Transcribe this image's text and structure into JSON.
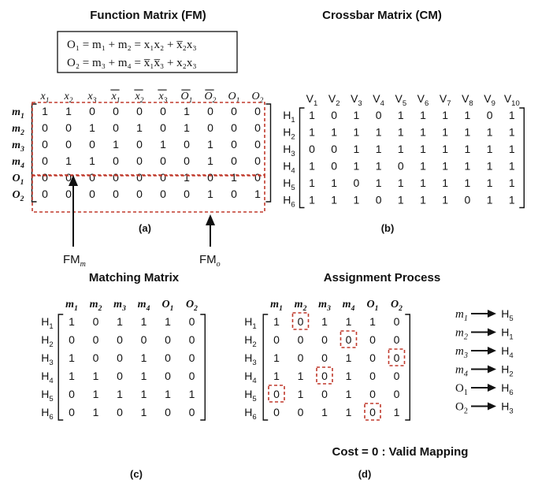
{
  "titles": {
    "fm": "Function Matrix (FM)",
    "cm": "Crossbar Matrix (CM)",
    "mm": "Matching Matrix",
    "ap": "Assignment Process"
  },
  "captions": {
    "a": "(a)",
    "b": "(b)",
    "c": "(c)",
    "d": "(d)"
  },
  "equations": {
    "eq1": "O₁ = m₁ + m₂ = x₁x₂ + x̅₂x₃",
    "eq2": "O₂ = m₃ + m₄ = x̅₁x̅₃ + x₂x₃"
  },
  "fm": {
    "cols": [
      "x1",
      "x2",
      "x3",
      "x1",
      "x2",
      "x3",
      "O1",
      "O2",
      "O1",
      "O2"
    ],
    "col_overlined": [
      false,
      false,
      false,
      true,
      true,
      true,
      true,
      true,
      false,
      false
    ],
    "rows": [
      "m1",
      "m2",
      "m3",
      "m4",
      "O1",
      "O2"
    ],
    "cells": [
      [
        1,
        1,
        0,
        0,
        0,
        0,
        1,
        0,
        0,
        0
      ],
      [
        0,
        0,
        1,
        0,
        1,
        0,
        1,
        0,
        0,
        0
      ],
      [
        0,
        0,
        0,
        1,
        0,
        1,
        0,
        1,
        0,
        0
      ],
      [
        0,
        1,
        1,
        0,
        0,
        0,
        0,
        1,
        0,
        0
      ],
      [
        0,
        0,
        0,
        0,
        0,
        0,
        1,
        0,
        1,
        0
      ],
      [
        0,
        0,
        0,
        0,
        0,
        0,
        0,
        1,
        0,
        1
      ]
    ],
    "fm_m_label": "FM",
    "fm_m_sub": "m",
    "fm_o_label": "FM",
    "fm_o_sub": "o"
  },
  "cm": {
    "cols": [
      "V1",
      "V2",
      "V3",
      "V4",
      "V5",
      "V6",
      "V7",
      "V8",
      "V9",
      "V10"
    ],
    "rows": [
      "H1",
      "H2",
      "H3",
      "H4",
      "H5",
      "H6"
    ],
    "cells": [
      [
        1,
        0,
        1,
        0,
        1,
        1,
        1,
        1,
        0,
        1
      ],
      [
        1,
        1,
        1,
        1,
        1,
        1,
        1,
        1,
        1,
        1
      ],
      [
        0,
        0,
        1,
        1,
        1,
        1,
        1,
        1,
        1,
        1
      ],
      [
        1,
        0,
        1,
        1,
        0,
        1,
        1,
        1,
        1,
        1
      ],
      [
        1,
        1,
        0,
        1,
        1,
        1,
        1,
        1,
        1,
        1
      ],
      [
        1,
        1,
        1,
        0,
        1,
        1,
        1,
        0,
        1,
        1
      ]
    ]
  },
  "mm": {
    "cols": [
      "m1",
      "m2",
      "m3",
      "m4",
      "O1",
      "O2"
    ],
    "rows": [
      "H1",
      "H2",
      "H3",
      "H4",
      "H5",
      "H6"
    ],
    "cells": [
      [
        1,
        0,
        1,
        1,
        1,
        0
      ],
      [
        0,
        0,
        0,
        0,
        0,
        0
      ],
      [
        1,
        0,
        0,
        1,
        0,
        0
      ],
      [
        1,
        1,
        0,
        1,
        0,
        0
      ],
      [
        0,
        1,
        1,
        1,
        1,
        1
      ],
      [
        0,
        1,
        0,
        1,
        0,
        0
      ]
    ]
  },
  "ap": {
    "cols": [
      "m1",
      "m2",
      "m3",
      "m4",
      "O1",
      "O2"
    ],
    "rows": [
      "H1",
      "H2",
      "H3",
      "H4",
      "H5",
      "H6"
    ],
    "cells": [
      [
        1,
        0,
        1,
        1,
        1,
        0
      ],
      [
        0,
        0,
        0,
        0,
        0,
        0
      ],
      [
        1,
        0,
        0,
        1,
        0,
        0
      ],
      [
        1,
        1,
        0,
        1,
        0,
        0
      ],
      [
        0,
        1,
        0,
        1,
        0,
        0
      ],
      [
        0,
        0,
        1,
        1,
        0,
        1
      ]
    ],
    "assigned": [
      [
        0,
        1
      ],
      [
        1,
        3
      ],
      [
        2,
        5
      ],
      [
        3,
        2
      ],
      [
        4,
        0
      ],
      [
        5,
        4
      ]
    ],
    "mapping": [
      {
        "from": "m1",
        "to": "H5"
      },
      {
        "from": "m2",
        "to": "H1"
      },
      {
        "from": "m3",
        "to": "H4"
      },
      {
        "from": "m4",
        "to": "H2"
      },
      {
        "from": "O1",
        "to": "H6"
      },
      {
        "from": "O2",
        "to": "H3"
      }
    ],
    "cost_text": "Cost = 0 : Valid Mapping"
  },
  "colors": {
    "ink": "#111111",
    "highlight": "#c0392b"
  }
}
